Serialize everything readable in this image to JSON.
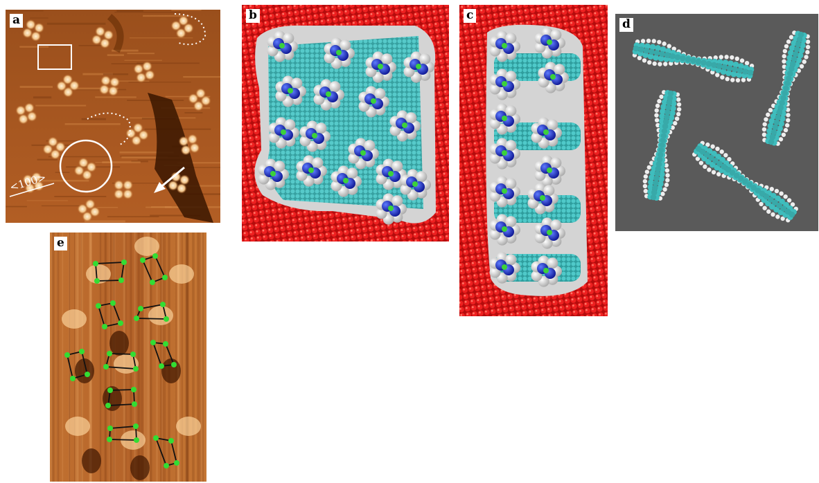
{
  "figure": {
    "panels": [
      {
        "id": "a",
        "label": "a",
        "direction_label": "<100>"
      },
      {
        "id": "b",
        "label": "b"
      },
      {
        "id": "c",
        "label": "c"
      },
      {
        "id": "d",
        "label": "d"
      },
      {
        "id": "e",
        "label": "e"
      }
    ]
  },
  "colors": {
    "stm_dark": "#4a1f00",
    "stm_mid": "#b8662a",
    "stm_bright": "#ffe2b4",
    "substrate": "#d41414",
    "carbon": "#3fbdbd",
    "hydrogen": "#e8e8e8",
    "nitrogen": "#1a2acc",
    "gray_bg": "#5a5a5a",
    "marker": "#33dd33"
  }
}
